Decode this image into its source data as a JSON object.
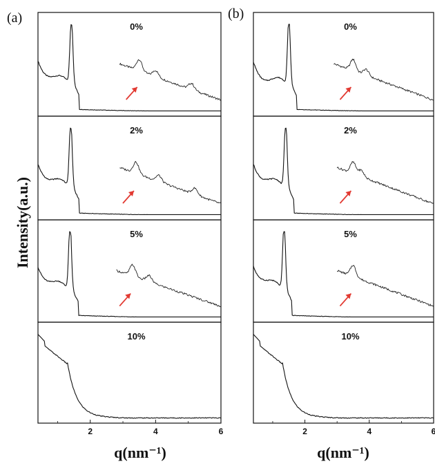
{
  "figure": {
    "y_axis_title": "Intensity(a.u.)",
    "x_axis_title": "q(nm⁻¹)",
    "arrow_color": "#e23a32"
  },
  "chart_data": [
    {
      "panel": "(a)",
      "type": "line",
      "xlabel": "q(nm⁻¹)",
      "ylabel": "Intensity(a.u.)",
      "xlim": [
        0.4,
        6.0
      ],
      "xticks": [
        2,
        4,
        6
      ],
      "tick_labels": [
        "2",
        "4",
        "6"
      ],
      "grid": false,
      "legend": "none",
      "series": [
        {
          "name": "0%",
          "peak_q": 1.42,
          "low_q_shape": "valley",
          "valley_q": 0.8,
          "shoulders": [
            {
              "q": 3.5,
              "label": "arrow"
            },
            {
              "q": 4.0
            },
            {
              "q": 5.1
            }
          ],
          "zoom_inset": {
            "q_start": 2.9,
            "q_end": 6.0
          }
        },
        {
          "name": "2%",
          "peak_q": 1.4,
          "low_q_shape": "valley",
          "valley_q": 0.9,
          "shoulders": [
            {
              "q": 3.4,
              "label": "arrow"
            },
            {
              "q": 4.1
            },
            {
              "q": 5.2
            }
          ],
          "zoom_inset": {
            "q_start": 2.9,
            "q_end": 6.0
          }
        },
        {
          "name": "5%",
          "peak_q": 1.38,
          "low_q_shape": "valley",
          "valley_q": 0.9,
          "shoulders": [
            {
              "q": 3.3,
              "label": "arrow"
            },
            {
              "q": 3.8
            }
          ],
          "zoom_inset": {
            "q_start": 2.8,
            "q_end": 6.0
          }
        },
        {
          "name": "10%",
          "peak_q": 1.2,
          "low_q_shape": "decay_with_shoulder",
          "shoulders": [],
          "zoom_inset": null
        }
      ]
    },
    {
      "panel": "(b)",
      "type": "line",
      "xlabel": "q(nm⁻¹)",
      "ylabel": "Intensity(a.u.)",
      "xlim": [
        0.4,
        6.0
      ],
      "xticks": [
        2,
        4,
        6
      ],
      "tick_labels": [
        "2",
        "4",
        "6"
      ],
      "grid": false,
      "legend": "none",
      "series": [
        {
          "name": "0%",
          "peak_q": 1.5,
          "low_q_shape": "valley",
          "valley_q": 0.9,
          "shoulders": [
            {
              "q": 3.5,
              "label": "arrow"
            },
            {
              "q": 3.9
            }
          ],
          "zoom_inset": {
            "q_start": 2.9,
            "q_end": 6.0
          }
        },
        {
          "name": "2%",
          "peak_q": 1.4,
          "low_q_shape": "valley",
          "valley_q": 0.9,
          "shoulders": [
            {
              "q": 3.5,
              "label": "arrow"
            },
            {
              "q": 3.75
            }
          ],
          "zoom_inset": {
            "q_start": 3.0,
            "q_end": 6.0
          }
        },
        {
          "name": "5%",
          "peak_q": 1.35,
          "low_q_shape": "valley",
          "valley_q": 0.9,
          "shoulders": [
            {
              "q": 3.5,
              "label": "arrow"
            }
          ],
          "zoom_inset": {
            "q_start": 3.0,
            "q_end": 6.0
          }
        },
        {
          "name": "10%",
          "peak_q": 1.2,
          "low_q_shape": "decay_with_shoulder",
          "shoulders": [],
          "zoom_inset": null
        }
      ]
    }
  ]
}
